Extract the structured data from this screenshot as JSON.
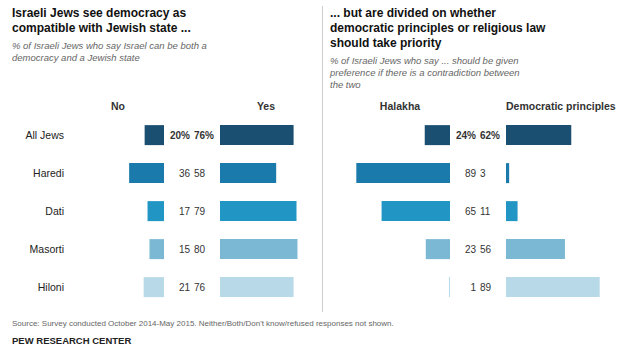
{
  "chart_data": [
    {
      "type": "bar",
      "orientation": "horizontal",
      "title": "Israeli Jews see democracy as\ncompatible with Jewish state ...",
      "subtitle": "% of Israeli Jews who say Israel can be both a\ndemocracy and a Jewish state",
      "categories": [
        "All Jews",
        "Haredi",
        "Dati",
        "Masorti",
        "Hiloni"
      ],
      "series": [
        {
          "name": "No",
          "values": [
            20,
            36,
            17,
            15,
            21
          ],
          "value_labels": [
            "20%",
            "36",
            "17",
            "15",
            "21"
          ]
        },
        {
          "name": "Yes",
          "values": [
            76,
            58,
            79,
            80,
            76
          ],
          "value_labels": [
            "76%",
            "58",
            "79",
            "80",
            "76"
          ]
        }
      ],
      "colors": [
        "#1b4f72",
        "#1a7aab",
        "#2196c4",
        "#7ab8d4",
        "#b8d9e8"
      ],
      "xlim": [
        0,
        95
      ],
      "data_labels": true,
      "tick_labels": "y",
      "grid": false,
      "annotations": [
        "Source: Survey conducted October 2014-May 2015. Neither/Both/Don't know/refused responses not shown.",
        "PEW RESEARCH CENTER"
      ]
    },
    {
      "type": "bar",
      "orientation": "horizontal",
      "title": "... but are divided on whether\ndemocratic principles or religious law\nshould take priority",
      "subtitle": "% of Israeli Jews who say ... should be given\npreference if there is a contradiction between\nthe two",
      "categories": [
        "All Jews",
        "Haredi",
        "Dati",
        "Masorti",
        "Hiloni"
      ],
      "series": [
        {
          "name": "Halakha",
          "values": [
            24,
            89,
            65,
            23,
            1
          ],
          "value_labels": [
            "24%",
            "89",
            "65",
            "23",
            "1"
          ]
        },
        {
          "name": "Democratic principles",
          "values": [
            62,
            3,
            11,
            56,
            89
          ],
          "value_labels": [
            "62%",
            "3",
            "11",
            "56",
            "89"
          ]
        }
      ],
      "colors": [
        "#1b4f72",
        "#1a7aab",
        "#2196c4",
        "#7ab8d4",
        "#b8d9e8"
      ],
      "xlim": [
        0,
        95
      ],
      "data_labels": true,
      "tick_labels": false,
      "grid": false
    }
  ]
}
